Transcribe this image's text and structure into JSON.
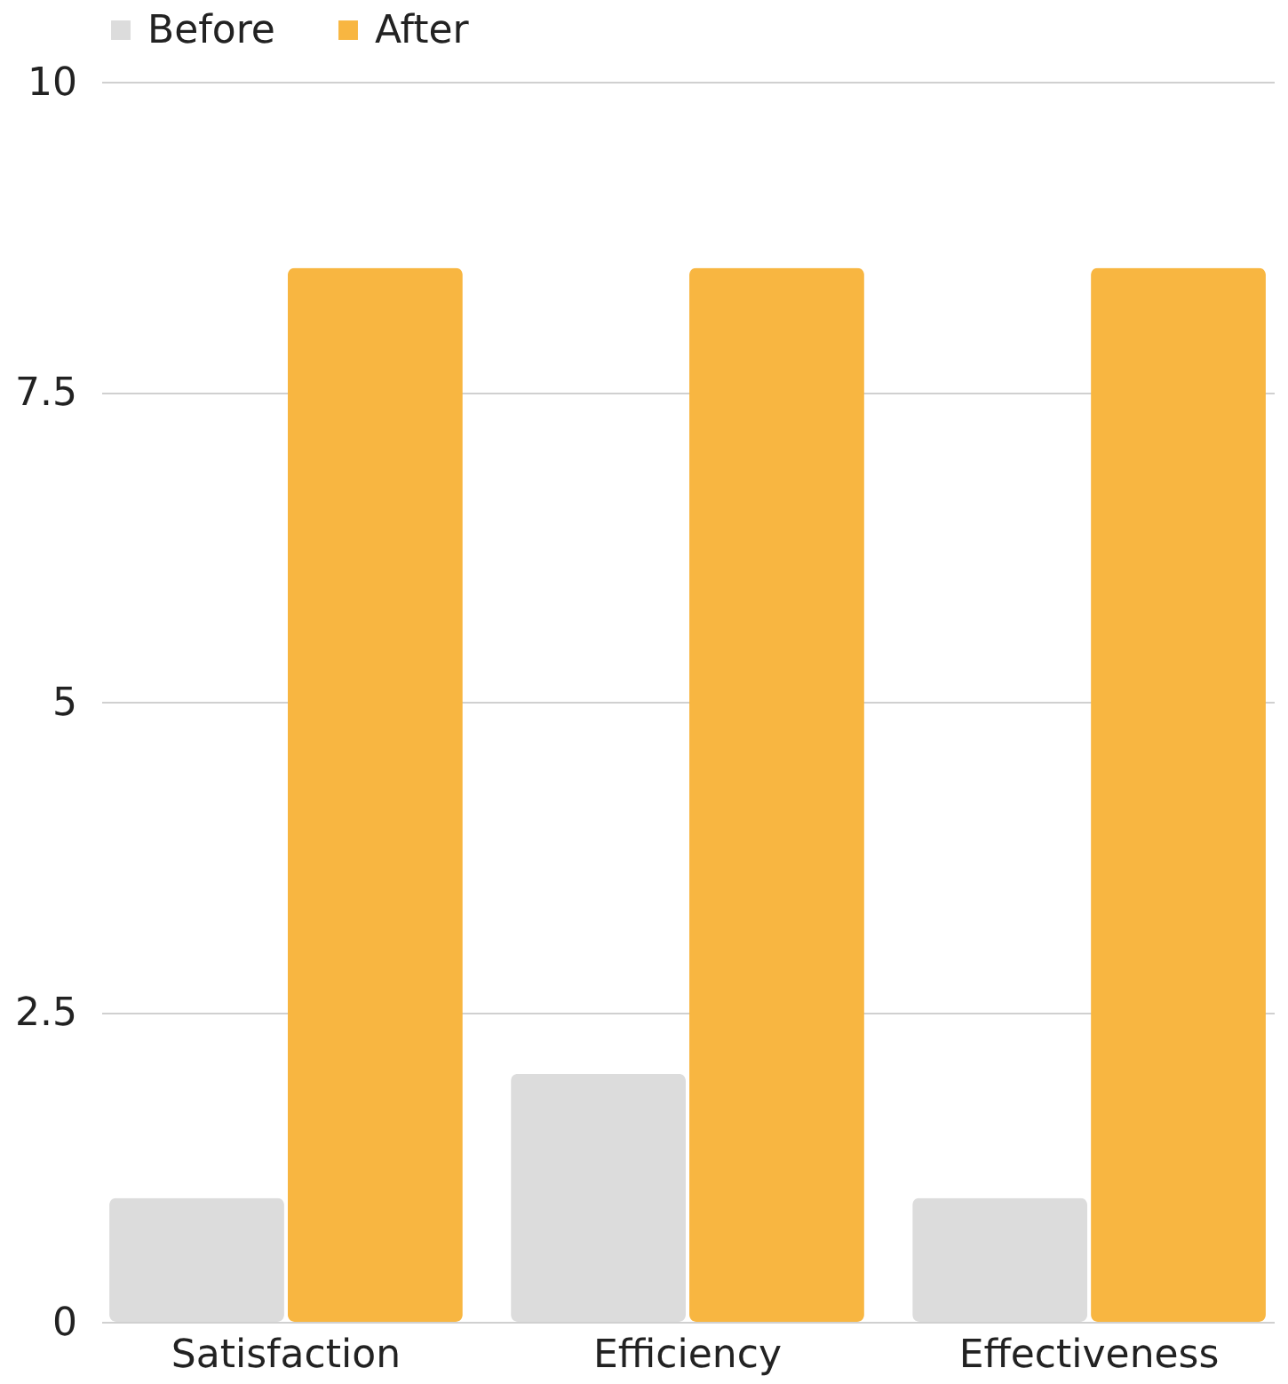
{
  "chart_data": {
    "type": "bar",
    "categories": [
      "Satisfaction",
      "Efficiency",
      "Effectiveness"
    ],
    "series": [
      {
        "name": "Before",
        "color": "#dcdcdc",
        "values": [
          1,
          2,
          1
        ]
      },
      {
        "name": "After",
        "color": "#f8b641",
        "values": [
          8.5,
          8.5,
          8.5
        ]
      }
    ],
    "ylim": [
      0,
      10
    ],
    "yticks": [
      0,
      2.5,
      5,
      7.5,
      10
    ],
    "grid": "y",
    "legend": "top"
  }
}
